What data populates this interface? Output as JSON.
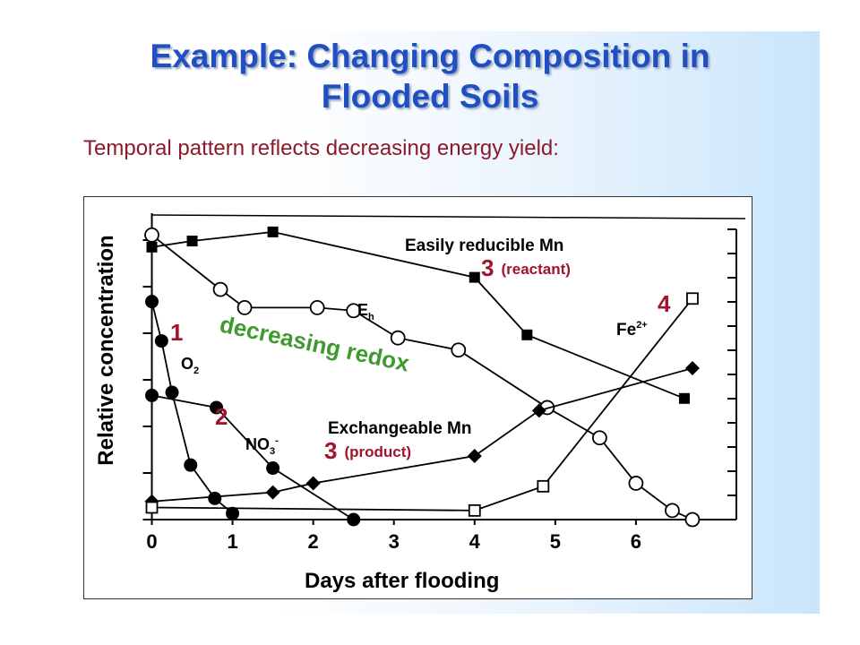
{
  "slide": {
    "title_line1": "Example: Changing Composition in",
    "title_line2": "Flooded Soils",
    "subtitle": "Temporal pattern reflects decreasing energy yield:"
  },
  "colors": {
    "title": "#1f4fc0",
    "subtitle": "#8b1a2b",
    "step_label": "#a0142c",
    "redox_arrow_text": "#3f9a2e",
    "ink": "#000000"
  },
  "chart_data": {
    "type": "line",
    "xlabel": "Days after flooding",
    "ylabel": "Relative concentration",
    "x_ticks": [
      "0",
      "1",
      "2",
      "3",
      "4",
      "5",
      "6"
    ],
    "xlim": [
      -0.15,
      7.4
    ],
    "ylim": [
      0,
      1
    ],
    "grid": false,
    "series": [
      {
        "name": "Easily reducible Mn",
        "marker": "filled-square",
        "x": [
          0,
          0.5,
          1.5,
          4.0,
          4.65,
          6.6
        ],
        "y": [
          0.9,
          0.92,
          0.95,
          0.8,
          0.61,
          0.4
        ]
      },
      {
        "name": "Eh",
        "marker": "open-circle",
        "x": [
          0,
          0.85,
          1.15,
          2.05,
          2.5,
          3.05,
          3.8,
          4.9,
          5.55,
          6.0,
          6.45,
          6.7
        ],
        "y": [
          0.94,
          0.76,
          0.7,
          0.7,
          0.69,
          0.6,
          0.56,
          0.37,
          0.27,
          0.12,
          0.03,
          0.0
        ]
      },
      {
        "name": "O2",
        "marker": "filled-circle",
        "x": [
          0,
          0.12,
          0.25,
          0.48,
          0.78,
          1.0
        ],
        "y": [
          0.72,
          0.59,
          0.42,
          0.18,
          0.07,
          0.02
        ]
      },
      {
        "name": "NO3-",
        "marker": "filled-circle",
        "x": [
          0,
          0.8,
          1.5,
          2.5
        ],
        "y": [
          0.41,
          0.37,
          0.17,
          0.0
        ]
      },
      {
        "name": "Exchangeable Mn",
        "marker": "filled-diamond",
        "x": [
          0,
          1.5,
          2.0,
          4.0,
          4.8,
          6.7
        ],
        "y": [
          0.06,
          0.09,
          0.12,
          0.21,
          0.36,
          0.5
        ]
      },
      {
        "name": "Fe2+",
        "marker": "open-square",
        "x": [
          0,
          4.0,
          4.85,
          6.7
        ],
        "y": [
          0.04,
          0.03,
          0.11,
          0.73
        ]
      }
    ],
    "annotations": [
      {
        "text": "Easily reducible Mn",
        "color": "#000000"
      },
      {
        "text": "3",
        "note": "(reactant)",
        "color": "#a0142c"
      },
      {
        "text": "4",
        "color": "#a0142c"
      },
      {
        "text": "Fe",
        "sup": "2+",
        "color": "#000000"
      },
      {
        "text": "E",
        "sub": "h",
        "color": "#000000"
      },
      {
        "text": "1",
        "color": "#a0142c"
      },
      {
        "text": "O",
        "sub": "2",
        "color": "#000000"
      },
      {
        "text": "decreasing redox",
        "color": "#3f9a2e"
      },
      {
        "text": "2",
        "color": "#a0142c"
      },
      {
        "text": "NO",
        "sub": "3",
        "sup": "-",
        "color": "#000000"
      },
      {
        "text": "Exchangeable Mn",
        "color": "#000000"
      },
      {
        "text": "3",
        "note": "(product)",
        "color": "#a0142c"
      }
    ]
  }
}
